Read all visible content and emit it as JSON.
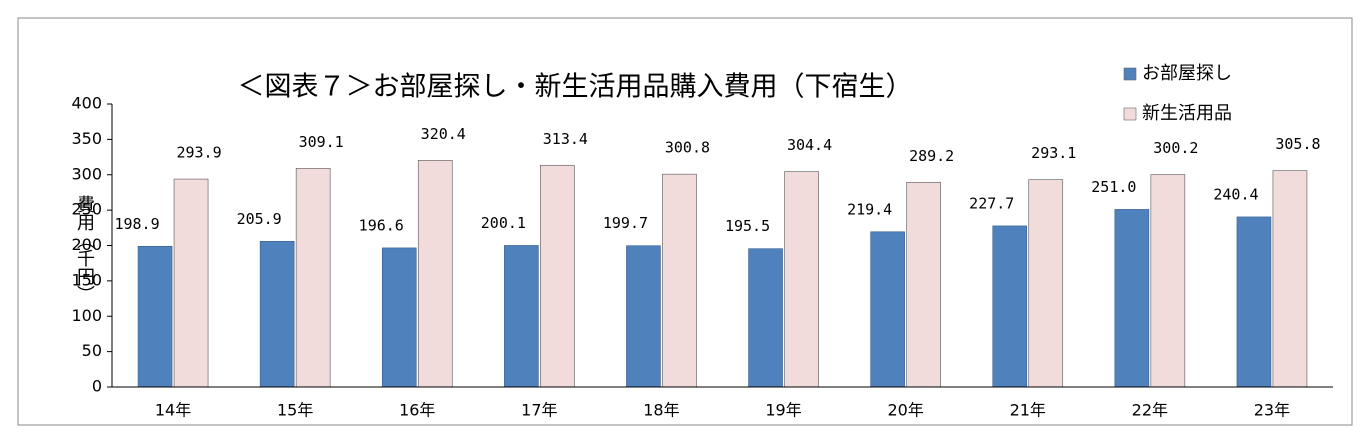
{
  "chart_data": {
    "type": "bar",
    "title": "＜図表７＞お部屋探し・新生活用品購入費用（下宿生）",
    "y_label": "費用（千円）",
    "categories": [
      "14年",
      "15年",
      "16年",
      "17年",
      "18年",
      "19年",
      "20年",
      "21年",
      "22年",
      "23年"
    ],
    "series": [
      {
        "name": "お部屋探し",
        "color": "#4f81bd",
        "values": [
          198.9,
          205.9,
          196.6,
          200.1,
          199.7,
          195.5,
          219.4,
          227.7,
          251.0,
          240.4
        ],
        "value_labels": [
          "198.9",
          "205.9",
          "196.6",
          "200.1",
          "199.7",
          "195.5",
          "219.4",
          "227.7",
          "251.0",
          "240.4"
        ]
      },
      {
        "name": "新生活用品",
        "color": "#f2dcdb",
        "values": [
          293.9,
          309.1,
          320.4,
          313.4,
          300.8,
          304.4,
          289.2,
          293.1,
          300.2,
          305.8
        ],
        "value_labels": [
          "293.9",
          "309.1",
          "320.4",
          "313.4",
          "300.8",
          "304.4",
          "289.2",
          "293.1",
          "300.2",
          "305.8"
        ]
      }
    ],
    "ylim": [
      0,
      400
    ],
    "yticks": [
      0,
      50,
      100,
      150,
      200,
      250,
      300,
      350,
      400
    ],
    "grid": false,
    "legend": "top-right"
  }
}
